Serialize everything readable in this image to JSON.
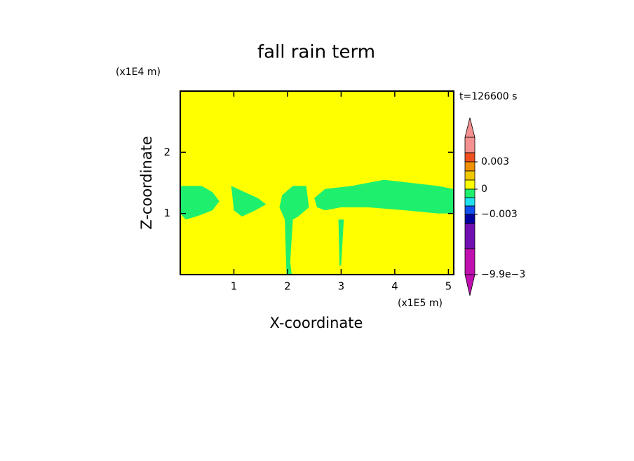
{
  "chart_data": {
    "type": "contour",
    "title": "fall rain term",
    "x_label": "X-coordinate",
    "y_label": "Z-coordinate",
    "x_unit": "(x1E5 m)",
    "y_unit": "(x1E4 m)",
    "time_label": "t=126600 s",
    "xlim": [
      0,
      5.1
    ],
    "ylim": [
      0,
      3
    ],
    "xticks": [
      1,
      2,
      3,
      4,
      5
    ],
    "yticks": [
      1,
      2
    ],
    "background_color": "#ffff00",
    "region_color": "#1ef06e",
    "regions": [
      {
        "x": [
          0,
          0.4,
          0.6,
          0.73,
          0.6,
          0.3,
          0.1,
          0
        ],
        "z": [
          1.45,
          1.45,
          1.35,
          1.2,
          1.05,
          0.95,
          0.9,
          1.0
        ]
      },
      {
        "x": [
          0.95,
          1.2,
          1.45,
          1.6,
          1.4,
          1.15,
          1.0,
          0.97
        ],
        "z": [
          1.45,
          1.35,
          1.25,
          1.15,
          1.05,
          0.95,
          1.05,
          1.3
        ]
      },
      {
        "x": [
          1.9,
          2.1,
          2.35,
          2.4,
          2.2,
          2.1,
          2.05,
          2.08,
          1.98,
          1.96,
          1.95,
          1.85
        ],
        "z": [
          1.3,
          1.45,
          1.45,
          1.1,
          0.95,
          0.9,
          0.2,
          0,
          0,
          0.6,
          0.9,
          1.1
        ]
      },
      {
        "x": [
          2.5,
          2.7,
          3.2,
          3.8,
          4.3,
          4.8,
          5.1,
          5.1,
          4.8,
          4.2,
          3.5,
          3.0,
          2.7,
          2.55
        ],
        "z": [
          1.25,
          1.4,
          1.45,
          1.55,
          1.5,
          1.45,
          1.4,
          1.0,
          1.0,
          1.05,
          1.1,
          1.1,
          1.05,
          1.1
        ]
      },
      {
        "x": [
          2.95,
          3.05,
          3.0,
          2.97
        ],
        "z": [
          0.9,
          0.9,
          0.15,
          0.15
        ]
      }
    ],
    "colorbar": {
      "colors": [
        "#f49090",
        "#f49090",
        "#f05020",
        "#f09000",
        "#f0c800",
        "#ffff00",
        "#1ef06e",
        "#20e0f0",
        "#1050f0",
        "#0000a0",
        "#7010b0",
        "#c010b0",
        "#c010b0"
      ],
      "ticks": [
        0.003,
        0,
        {
          "value": -0.003,
          "label": "−0.003"
        },
        {
          "value": -0.0099,
          "label": "−9.9e−3"
        }
      ]
    }
  }
}
